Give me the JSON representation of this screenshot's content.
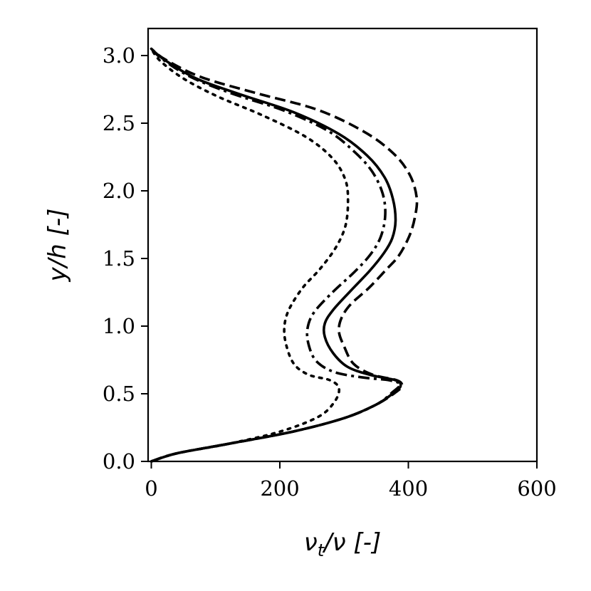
{
  "chart_data": {
    "type": "line",
    "xlabel": "ν",
    "xlabel_sub": "t",
    "xlabel_rest": "/ν [-]",
    "ylabel": "y/h [-]",
    "xlim": [
      -5,
      600
    ],
    "ylim": [
      0,
      3.2
    ],
    "xticks": [
      0,
      200,
      400,
      600
    ],
    "xtick_labels": [
      "0",
      "200",
      "400",
      "600"
    ],
    "yticks": [
      0.0,
      0.5,
      1.0,
      1.5,
      2.0,
      2.5,
      3.0
    ],
    "ytick_labels": [
      "0.0",
      "0.5",
      "1.0",
      "1.5",
      "2.0",
      "2.5",
      "3.0"
    ],
    "grid": false,
    "series": [
      {
        "style": "solid",
        "points": [
          [
            0,
            0.0
          ],
          [
            40,
            0.06
          ],
          [
            120,
            0.13
          ],
          [
            220,
            0.22
          ],
          [
            300,
            0.32
          ],
          [
            350,
            0.42
          ],
          [
            378,
            0.51
          ],
          [
            388,
            0.56
          ],
          [
            380,
            0.6
          ],
          [
            340,
            0.64
          ],
          [
            305,
            0.7
          ],
          [
            283,
            0.8
          ],
          [
            270,
            0.92
          ],
          [
            270,
            1.02
          ],
          [
            283,
            1.12
          ],
          [
            310,
            1.26
          ],
          [
            340,
            1.41
          ],
          [
            362,
            1.54
          ],
          [
            375,
            1.65
          ],
          [
            380,
            1.78
          ],
          [
            376,
            1.94
          ],
          [
            363,
            2.1
          ],
          [
            336,
            2.26
          ],
          [
            292,
            2.42
          ],
          [
            222,
            2.58
          ],
          [
            140,
            2.71
          ],
          [
            70,
            2.83
          ],
          [
            20,
            2.97
          ],
          [
            0,
            3.05
          ]
        ]
      },
      {
        "style": "dashed",
        "points": [
          [
            0,
            0.0
          ],
          [
            40,
            0.06
          ],
          [
            120,
            0.13
          ],
          [
            220,
            0.22
          ],
          [
            300,
            0.32
          ],
          [
            350,
            0.42
          ],
          [
            380,
            0.51
          ],
          [
            390,
            0.56
          ],
          [
            382,
            0.6
          ],
          [
            345,
            0.64
          ],
          [
            315,
            0.72
          ],
          [
            300,
            0.85
          ],
          [
            292,
            0.96
          ],
          [
            296,
            1.06
          ],
          [
            310,
            1.16
          ],
          [
            338,
            1.28
          ],
          [
            366,
            1.42
          ],
          [
            385,
            1.52
          ],
          [
            401,
            1.66
          ],
          [
            410,
            1.8
          ],
          [
            413,
            1.95
          ],
          [
            402,
            2.12
          ],
          [
            376,
            2.28
          ],
          [
            330,
            2.44
          ],
          [
            258,
            2.6
          ],
          [
            165,
            2.72
          ],
          [
            78,
            2.84
          ],
          [
            22,
            2.97
          ],
          [
            0,
            3.05
          ]
        ]
      },
      {
        "style": "dashdot",
        "points": [
          [
            0,
            0.0
          ],
          [
            40,
            0.06
          ],
          [
            120,
            0.13
          ],
          [
            220,
            0.22
          ],
          [
            300,
            0.32
          ],
          [
            350,
            0.42
          ],
          [
            375,
            0.51
          ],
          [
            387,
            0.57
          ],
          [
            370,
            0.6
          ],
          [
            330,
            0.62
          ],
          [
            285,
            0.66
          ],
          [
            257,
            0.74
          ],
          [
            245,
            0.86
          ],
          [
            243,
            0.98
          ],
          [
            253,
            1.1
          ],
          [
            282,
            1.25
          ],
          [
            316,
            1.4
          ],
          [
            341,
            1.53
          ],
          [
            357,
            1.66
          ],
          [
            364,
            1.82
          ],
          [
            360,
            1.98
          ],
          [
            344,
            2.14
          ],
          [
            318,
            2.28
          ],
          [
            276,
            2.44
          ],
          [
            208,
            2.59
          ],
          [
            125,
            2.72
          ],
          [
            62,
            2.84
          ],
          [
            18,
            2.97
          ],
          [
            0,
            3.05
          ]
        ]
      },
      {
        "style": "dotted",
        "points": [
          [
            0,
            0.0
          ],
          [
            40,
            0.06
          ],
          [
            120,
            0.13
          ],
          [
            200,
            0.22
          ],
          [
            260,
            0.33
          ],
          [
            285,
            0.44
          ],
          [
            292,
            0.54
          ],
          [
            278,
            0.6
          ],
          [
            245,
            0.64
          ],
          [
            222,
            0.72
          ],
          [
            210,
            0.86
          ],
          [
            207,
            0.99
          ],
          [
            214,
            1.12
          ],
          [
            235,
            1.28
          ],
          [
            262,
            1.42
          ],
          [
            287,
            1.58
          ],
          [
            302,
            1.74
          ],
          [
            306,
            1.92
          ],
          [
            302,
            2.08
          ],
          [
            282,
            2.24
          ],
          [
            240,
            2.4
          ],
          [
            172,
            2.56
          ],
          [
            102,
            2.7
          ],
          [
            50,
            2.83
          ],
          [
            14,
            2.96
          ],
          [
            0,
            3.05
          ]
        ]
      }
    ]
  }
}
